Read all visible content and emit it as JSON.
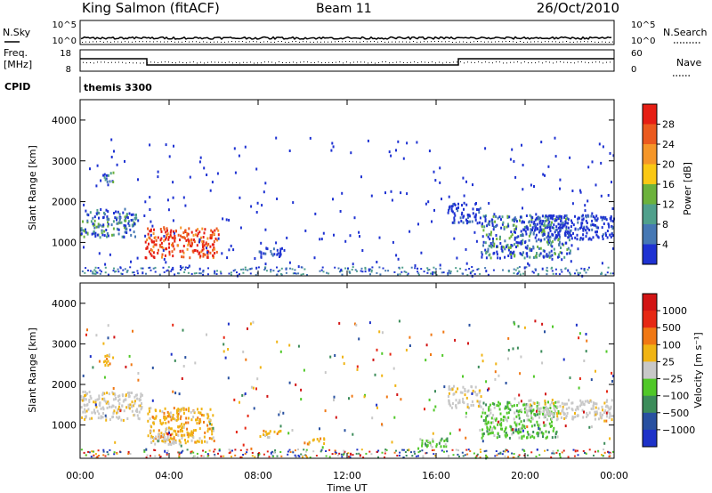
{
  "header": {
    "title": "King Salmon (fitACF)",
    "beam": "Beam 11",
    "date": "26/Oct/2010"
  },
  "strip_panels": {
    "nsky_label": "N.Sky",
    "nsearch_label": "N.Search",
    "freq_label_1": "Freq.",
    "freq_label_2": "[MHz]",
    "nave_label": "Nave",
    "cpid_label": "CPID",
    "cpid_value": "themis 3300",
    "noise_left_ticks": [
      "10^5",
      "10^0"
    ],
    "noise_right_ticks": [
      "10^5",
      "10^0"
    ],
    "freq_left_ticks": [
      "18",
      "8"
    ],
    "nave_right_ticks": [
      "60",
      "0"
    ]
  },
  "chart_data": [
    {
      "type": "heatmap",
      "panel": "power",
      "ylabel": "Slant Range [km]",
      "xlabel": "",
      "x_range_hours": [
        0,
        24
      ],
      "ylim": [
        180,
        4500
      ],
      "yticks": [
        1000,
        2000,
        3000,
        4000
      ],
      "colorbar": {
        "label": "Power [dB]",
        "ticks": [
          "4",
          "8",
          "12",
          "16",
          "20",
          "24",
          "28"
        ],
        "colors": [
          "#1e32d2",
          "#4678b4",
          "#50a08c",
          "#6cb23c",
          "#fac814",
          "#f59628",
          "#eb5a1e",
          "#e61e14"
        ]
      },
      "regions": [
        {
          "t0": 0.0,
          "t1": 2.5,
          "r0": 1150,
          "r1": 1850,
          "level": "mid"
        },
        {
          "t0": 1.0,
          "t1": 1.5,
          "r0": 2450,
          "r1": 2750,
          "level": "mid"
        },
        {
          "t0": 2.9,
          "t1": 6.2,
          "r0": 650,
          "r1": 1400,
          "level": "high"
        },
        {
          "t0": 8.0,
          "t1": 9.2,
          "r0": 650,
          "r1": 900,
          "level": "low"
        },
        {
          "t0": 16.5,
          "t1": 18.0,
          "r0": 1500,
          "r1": 2000,
          "level": "low"
        },
        {
          "t0": 18.0,
          "t1": 22.0,
          "r0": 650,
          "r1": 1700,
          "level": "mid"
        },
        {
          "t0": 20.0,
          "t1": 24.0,
          "r0": 1100,
          "r1": 1700,
          "level": "low"
        }
      ]
    },
    {
      "type": "heatmap",
      "panel": "velocity",
      "ylabel": "Slant Range [km]",
      "xlabel": "Time UT",
      "x_range_hours": [
        0,
        24
      ],
      "ylim": [
        180,
        4500
      ],
      "yticks": [
        1000,
        2000,
        3000,
        4000
      ],
      "xticks": [
        "00:00",
        "04:00",
        "08:00",
        "12:00",
        "16:00",
        "20:00",
        "00:00"
      ],
      "colorbar": {
        "label": "Velocity [m s⁻¹]",
        "ticks": [
          "1000",
          "500",
          "100",
          "25",
          "−25",
          "−100",
          "−500",
          "−1000"
        ],
        "colors": [
          "#1e32c8",
          "#2850a0",
          "#3c8c5a",
          "#50c828",
          "#c8c8c8",
          "#f0b414",
          "#f07814",
          "#e62814",
          "#d21414"
        ]
      },
      "regions": [
        {
          "t0": 0.0,
          "t1": 2.8,
          "r0": 1150,
          "r1": 1850,
          "level": "grey"
        },
        {
          "t0": 3.0,
          "t1": 6.0,
          "r0": 600,
          "r1": 1450,
          "level": "orange"
        },
        {
          "t0": 3.0,
          "t1": 4.5,
          "r0": 550,
          "r1": 800,
          "level": "grey"
        },
        {
          "t0": 1.0,
          "t1": 1.5,
          "r0": 2500,
          "r1": 2800,
          "level": "orange"
        },
        {
          "t0": 8.0,
          "t1": 9.0,
          "r0": 700,
          "r1": 900,
          "level": "orange"
        },
        {
          "t0": 10.0,
          "t1": 11.0,
          "r0": 550,
          "r1": 700,
          "level": "orange"
        },
        {
          "t0": 15.0,
          "t1": 16.5,
          "r0": 450,
          "r1": 700,
          "level": "green"
        },
        {
          "t0": 16.5,
          "t1": 18.0,
          "r0": 1450,
          "r1": 2000,
          "level": "grey"
        },
        {
          "t0": 18.0,
          "t1": 21.5,
          "r0": 700,
          "r1": 1600,
          "level": "green"
        },
        {
          "t0": 20.0,
          "t1": 24.0,
          "r0": 1150,
          "r1": 1650,
          "level": "grey"
        }
      ]
    }
  ]
}
